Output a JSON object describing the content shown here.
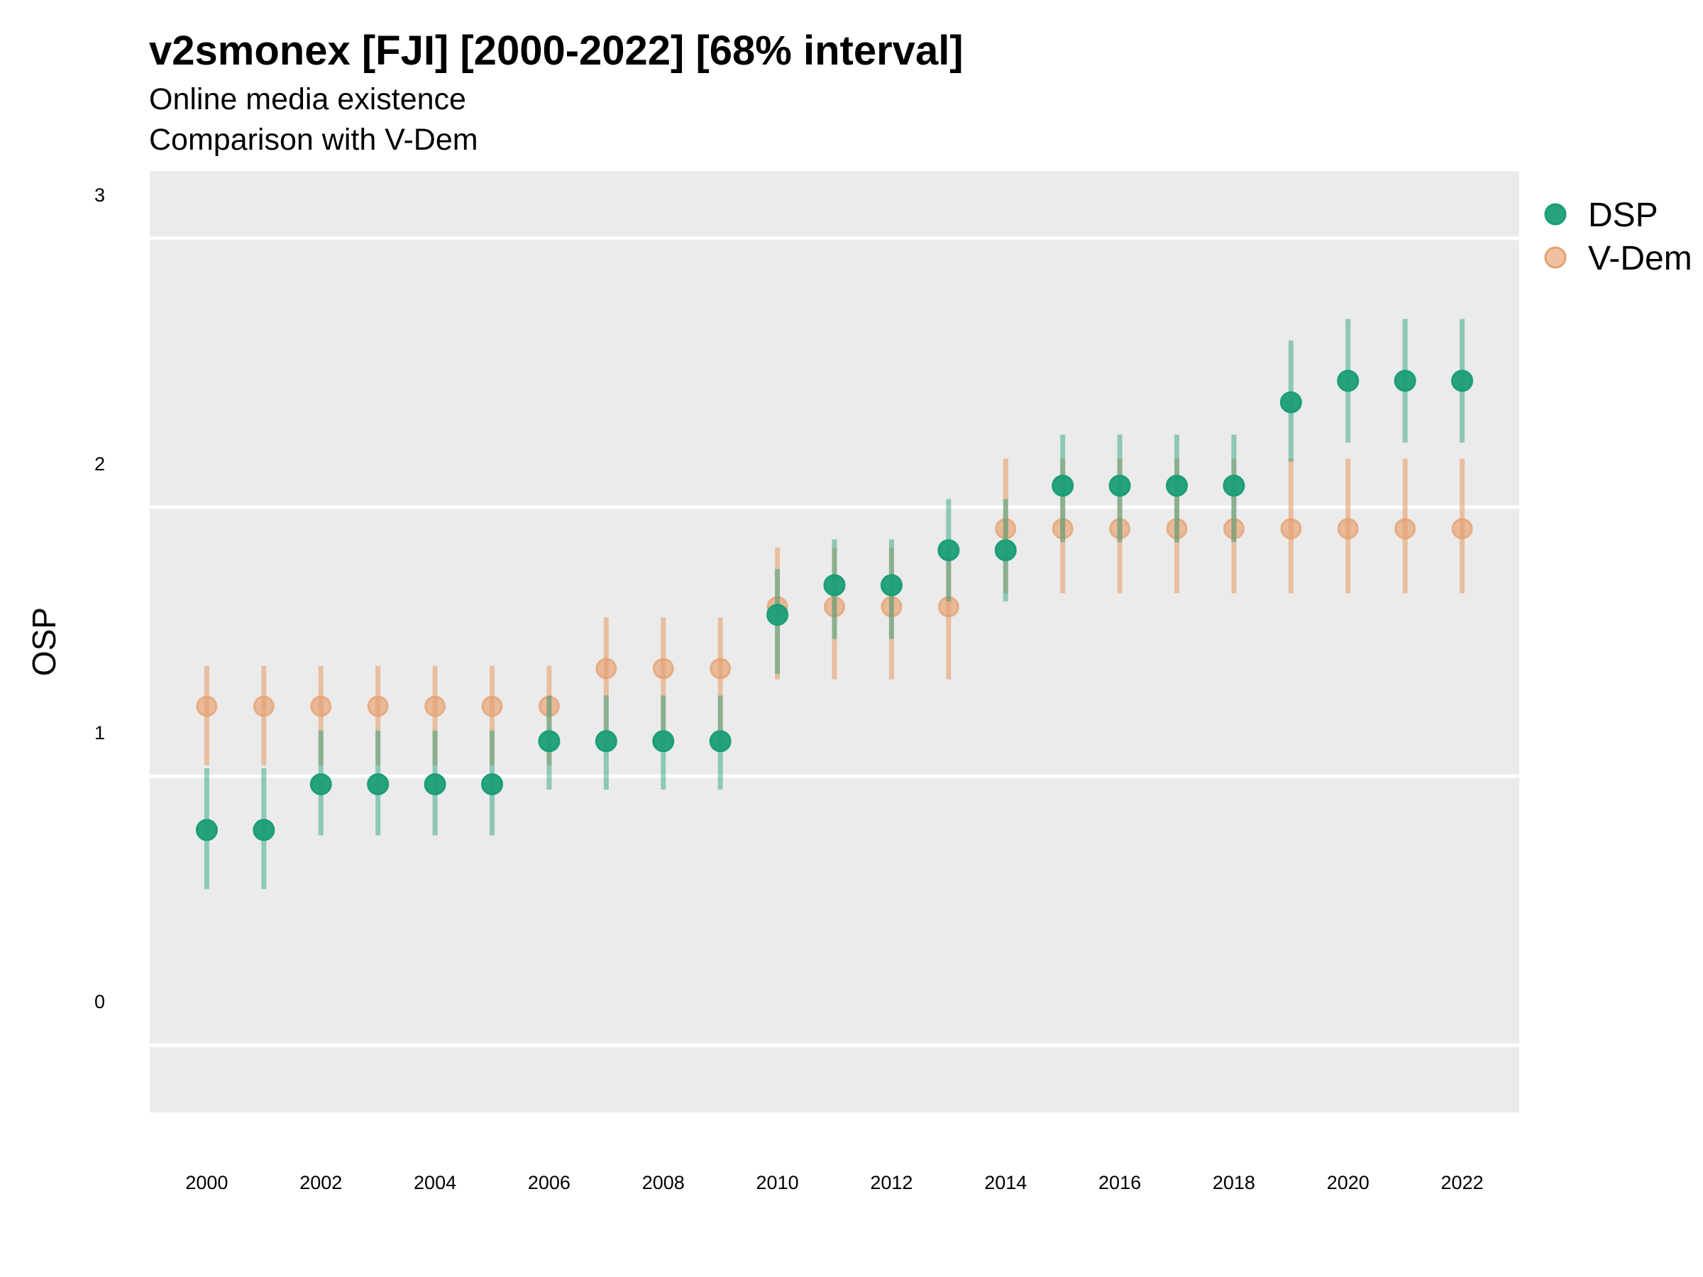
{
  "title": "v2smonex [FJI] [2000-2022] [68% interval]",
  "subtitle_lines": [
    "Online media existence",
    "Comparison with V-Dem"
  ],
  "colors": {
    "DSP": "#1b9e77",
    "V-Dem": "#e6a06e",
    "panel": "#ebebeb",
    "grid": "#ffffff"
  },
  "chart_data": {
    "type": "scatter",
    "title": "v2smonex [FJI] [2000-2022] [68% interval]",
    "subtitle": [
      "Online media existence",
      "Comparison with V-Dem"
    ],
    "xlabel": "",
    "ylabel": "OSP",
    "xlim": [
      1999.0,
      2023.0
    ],
    "ylim": [
      -0.25,
      3.25
    ],
    "x_ticks": [
      2000,
      2002,
      2004,
      2006,
      2008,
      2010,
      2012,
      2014,
      2016,
      2018,
      2020,
      2022
    ],
    "y_ticks": [
      0,
      1,
      2,
      3
    ],
    "grid": true,
    "legend_position": "right",
    "x": [
      2000,
      2001,
      2002,
      2003,
      2004,
      2005,
      2006,
      2007,
      2008,
      2009,
      2010,
      2011,
      2012,
      2013,
      2014,
      2015,
      2016,
      2017,
      2018,
      2019,
      2020,
      2021,
      2022
    ],
    "series": [
      {
        "name": "V-Dem",
        "values": [
          1.26,
          1.26,
          1.26,
          1.26,
          1.26,
          1.26,
          1.26,
          1.4,
          1.4,
          1.4,
          1.63,
          1.63,
          1.63,
          1.63,
          1.92,
          1.92,
          1.92,
          1.92,
          1.92,
          1.92,
          1.92,
          1.92,
          1.92
        ],
        "lower": [
          1.04,
          1.04,
          1.04,
          1.04,
          1.04,
          1.04,
          1.04,
          1.17,
          1.17,
          1.17,
          1.36,
          1.36,
          1.36,
          1.36,
          1.68,
          1.68,
          1.68,
          1.68,
          1.68,
          1.68,
          1.68,
          1.68,
          1.68
        ],
        "upper": [
          1.41,
          1.41,
          1.41,
          1.41,
          1.41,
          1.41,
          1.41,
          1.59,
          1.59,
          1.59,
          1.85,
          1.85,
          1.85,
          1.85,
          2.18,
          2.18,
          2.18,
          2.18,
          2.18,
          2.18,
          2.18,
          2.18,
          2.18
        ]
      },
      {
        "name": "DSP",
        "values": [
          0.8,
          0.8,
          0.97,
          0.97,
          0.97,
          0.97,
          1.13,
          1.13,
          1.13,
          1.13,
          1.6,
          1.71,
          1.71,
          1.84,
          1.84,
          2.08,
          2.08,
          2.08,
          2.08,
          2.39,
          2.47,
          2.47,
          2.47
        ],
        "lower": [
          0.58,
          0.58,
          0.78,
          0.78,
          0.78,
          0.78,
          0.95,
          0.95,
          0.95,
          0.95,
          1.38,
          1.51,
          1.51,
          1.65,
          1.65,
          1.87,
          1.87,
          1.87,
          1.87,
          2.17,
          2.24,
          2.24,
          2.24
        ],
        "upper": [
          1.03,
          1.03,
          1.17,
          1.17,
          1.17,
          1.17,
          1.3,
          1.3,
          1.3,
          1.3,
          1.77,
          1.88,
          1.88,
          2.03,
          2.03,
          2.27,
          2.27,
          2.27,
          2.27,
          2.62,
          2.7,
          2.7,
          2.7
        ]
      }
    ]
  }
}
